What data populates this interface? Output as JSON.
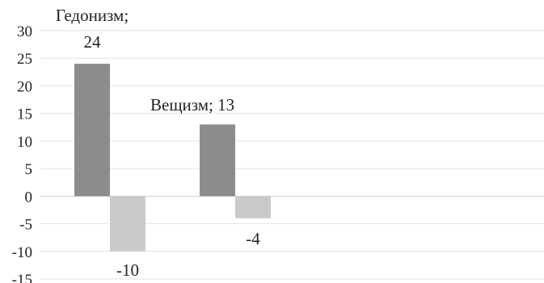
{
  "chart_data": {
    "type": "bar",
    "categories": [
      "Гедонизм",
      "Вещизм"
    ],
    "series": [
      {
        "values": [
          24,
          13
        ],
        "color": "#8c8c8e"
      },
      {
        "values": [
          -10,
          -4
        ],
        "color": "#cacaca"
      }
    ],
    "ylim": [
      -15,
      30
    ],
    "yticks": [
      "30",
      "25",
      "20",
      "15",
      "10",
      "5",
      "0",
      "-5",
      "-10",
      "-15"
    ],
    "grid": true,
    "data_labels": [
      {
        "series": 0,
        "index": 0,
        "lines": [
          "Гедонизм;",
          "24"
        ]
      },
      {
        "series": 1,
        "index": 0,
        "lines": [
          "-10"
        ]
      },
      {
        "series": 0,
        "index": 1,
        "lines": [
          "Вещизм; 13"
        ]
      },
      {
        "series": 1,
        "index": 1,
        "lines": [
          "-4"
        ]
      }
    ]
  }
}
